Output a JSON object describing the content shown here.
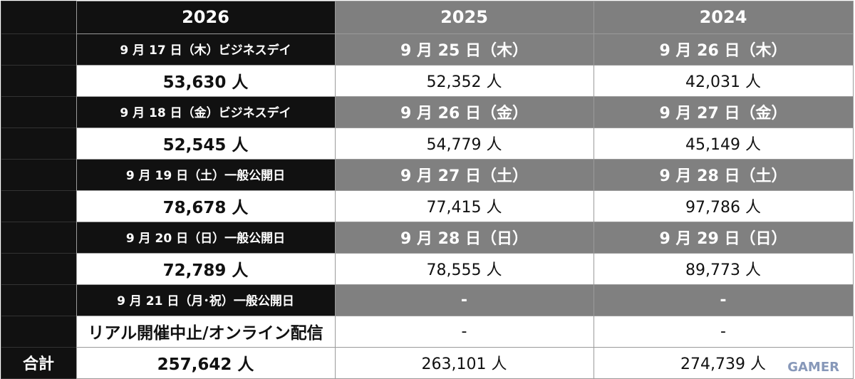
{
  "table": {
    "header": [
      "2026",
      "2025",
      "2024"
    ],
    "rows": [
      [
        "9 月 17 日（木）ビジネスデイ",
        "9 月 25 日（木）",
        "9 月 26 日（木）"
      ],
      [
        "53,630 人",
        "52,352 人",
        "42,031 人"
      ],
      [
        "9 月 18 日（金）ビジネスデイ",
        "9 月 26 日（金）",
        "9 月 27 日（金）"
      ],
      [
        "52,545 人",
        "54,779 人",
        "45,149 人"
      ],
      [
        "9 月 19 日（土）一般公開日",
        "9 月 27 日（土）",
        "9 月 28 日（土）"
      ],
      [
        "78,678 人",
        "77,415 人",
        "97,786 人"
      ],
      [
        "9 月 20 日（日）一般公開日",
        "9 月 28 日（日）",
        "9 月 29 日（日）"
      ],
      [
        "72,789 人",
        "78,555 人",
        "89,773 人"
      ],
      [
        "9 月 21 日（月･祝）一般公開日",
        "-",
        "-"
      ],
      [
        "リアル開催中止/オンライン配信",
        "-",
        "-"
      ]
    ],
    "total": {
      "label": "合計",
      "cells": [
        "257,642 人",
        "263,101 人",
        "274,739 人"
      ]
    }
  },
  "watermark": "GAMER"
}
